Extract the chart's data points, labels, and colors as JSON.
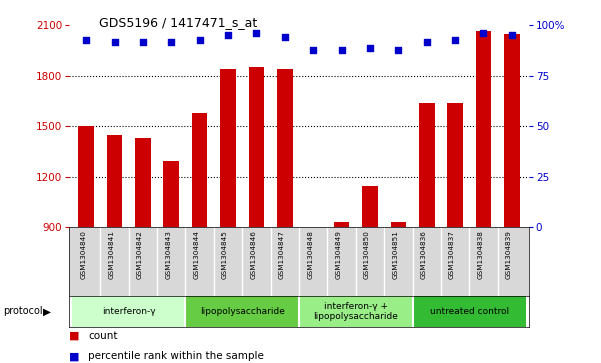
{
  "title": "GDS5196 / 1417471_s_at",
  "samples": [
    "GSM1304840",
    "GSM1304841",
    "GSM1304842",
    "GSM1304843",
    "GSM1304844",
    "GSM1304845",
    "GSM1304846",
    "GSM1304847",
    "GSM1304848",
    "GSM1304849",
    "GSM1304850",
    "GSM1304851",
    "GSM1304836",
    "GSM1304837",
    "GSM1304838",
    "GSM1304839"
  ],
  "counts": [
    1500,
    1450,
    1430,
    1290,
    1580,
    1840,
    1855,
    1840,
    870,
    930,
    1145,
    930,
    1640,
    1640,
    2065,
    2050
  ],
  "percentiles": [
    93,
    92,
    92,
    92,
    93,
    95,
    96,
    94,
    88,
    88,
    89,
    88,
    92,
    93,
    96,
    95
  ],
  "groups": [
    {
      "label": "interferon-γ",
      "start": 0,
      "end": 4,
      "color": "#ccffcc"
    },
    {
      "label": "lipopolysaccharide",
      "start": 4,
      "end": 8,
      "color": "#66cc44"
    },
    {
      "label": "interferon-γ +\nlipopolysaccharide",
      "start": 8,
      "end": 12,
      "color": "#99ee88"
    },
    {
      "label": "untreated control",
      "start": 12,
      "end": 16,
      "color": "#33bb33"
    }
  ],
  "ylim_left": [
    900,
    2100
  ],
  "ylim_right": [
    0,
    100
  ],
  "yticks_left": [
    900,
    1200,
    1500,
    1800,
    2100
  ],
  "yticks_right": [
    0,
    25,
    50,
    75,
    100
  ],
  "bar_color": "#cc0000",
  "dot_color": "#0000cc",
  "bg_color": "#ffffff",
  "plot_bg": "#ffffff",
  "grid_color": "#000000",
  "legend_count_color": "#cc0000",
  "legend_pct_color": "#0000cc",
  "ylabel_left_color": "#cc0000",
  "ylabel_right_color": "#0000cc",
  "label_box_color": "#d8d8d8"
}
